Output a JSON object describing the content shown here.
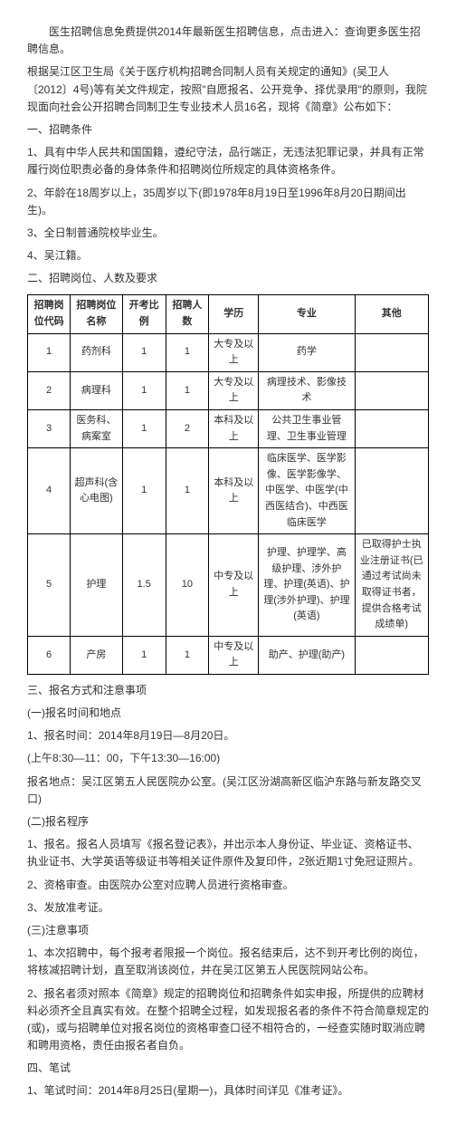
{
  "intro": "医生招聘信息免费提供2014年最新医生招聘信息，点击进入：查询更多医生招聘信息。",
  "preamble": "根据吴江区卫生局《关于医疗机构招聘合同制人员有关规定的通知》(吴卫人〔2012〕4号)等有关文件规定，按照\"自愿报名、公开竞争、择优录用\"的原则，我院现面向社会公开招聘合同制卫生专业技术人员16名，现将《简章》公布如下：",
  "section1_title": "一、招聘条件",
  "cond1": "1、具有中华人民共和国国籍，遵纪守法，品行端正，无违法犯罪记录，并具有正常履行岗位职责必备的身体条件和招聘岗位所规定的具体资格条件。",
  "cond2": "2、年龄在18周岁以上，35周岁以下(即1978年8月19日至1996年8月20日期间出生)。",
  "cond3": "3、全日制普通院校毕业生。",
  "cond4": "4、吴江籍。",
  "section2_title": "二、招聘岗位、人数及要求",
  "table": {
    "headers": [
      "招聘岗位代码",
      "招聘岗位名称",
      "开考比例",
      "招聘人数",
      "学历",
      "专业",
      "其他"
    ],
    "rows": [
      [
        "1",
        "药剂科",
        "1",
        "1",
        "大专及以上",
        "药学",
        ""
      ],
      [
        "2",
        "病理科",
        "1",
        "1",
        "大专及以上",
        "病理技术、影像技术",
        ""
      ],
      [
        "3",
        "医务科、病案室",
        "1",
        "2",
        "本科及以上",
        "公共卫生事业管理、卫生事业管理",
        ""
      ],
      [
        "4",
        "超声科(含心电图)",
        "1",
        "1",
        "本科及以上",
        "临床医学、医学影像、医学影像学、中医学、中医学(中西医结合)、中西医临床医学",
        ""
      ],
      [
        "5",
        "护理",
        "1.5",
        "10",
        "中专及以上",
        "护理、护理学、高级护理、涉外护理、护理(英语)、护理(涉外护理)、护理(英语)",
        "已取得护士执业注册证书(已通过考试尚未取得证书者，提供合格考试成绩单)"
      ],
      [
        "6",
        "产房",
        "1",
        "1",
        "中专及以上",
        "助产、护理(助产)",
        ""
      ]
    ]
  },
  "section3_title": "三、报名方式和注意事项",
  "sub3_1_title": "(一)报名时间和地点",
  "sub3_1_p1": "1、报名时间：2014年8月19日—8月20日。",
  "sub3_1_p2": "(上午8:30—11：00，下午13:30—16:00)",
  "sub3_1_p3": "报名地点：吴江区第五人民医院办公室。(吴江区汾湖高新区临沪东路与新友路交叉口)",
  "sub3_2_title": "(二)报名程序",
  "sub3_2_p1": "1、报名。报名人员填写《报名登记表》，并出示本人身份证、毕业证、资格证书、执业证书、大学英语等级证书等相关证件原件及复印件，2张近期1寸免冠证照片。",
  "sub3_2_p2": "2、资格审查。由医院办公室对应聘人员进行资格审查。",
  "sub3_2_p3": "3、发放准考证。",
  "sub3_3_title": "(三)注意事项",
  "sub3_3_p1": "1、本次招聘中，每个报考者限报一个岗位。报名结束后，达不到开考比例的岗位，将核减招聘计划，直至取消该岗位，并在吴江区第五人民医院网站公布。",
  "sub3_3_p2": "2、报名者须对照本《简章》规定的招聘岗位和招聘条件如实申报，所提供的应聘材料必须齐全且真实有效。在整个招聘全过程，如发现报名者的条件不符合简章规定的(或)，或与招聘单位对报名岗位的资格审查口径不相符合的，一经查实随时取消应聘和聘用资格，责任由报名者自负。",
  "section4_title": "四、笔试",
  "sect4_p1": "1、笔试时间：2014年8月25日(星期一)，具体时间详见《准考证》。"
}
